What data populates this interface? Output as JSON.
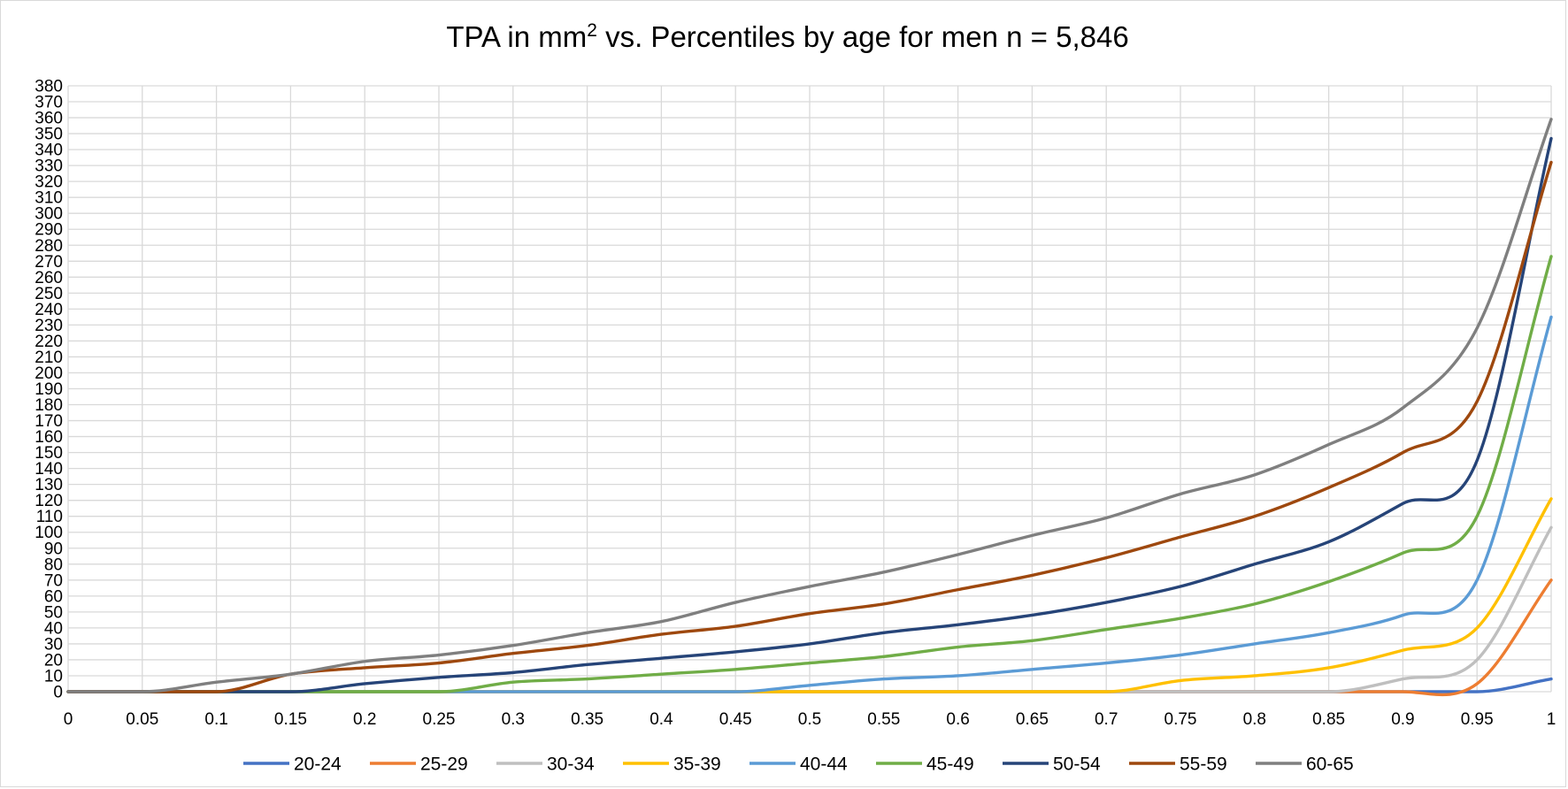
{
  "chart_data": {
    "type": "line",
    "title": "TPA in mm² vs. Percentiles by age for men n = 5,846",
    "title_parts": {
      "pre": "TPA in mm",
      "sup": "2",
      "post": " vs. Percentiles by age for men n = 5,846"
    },
    "xlabel": "",
    "ylabel": "",
    "xlim": [
      0,
      1
    ],
    "ylim": [
      0,
      380
    ],
    "x_ticks": [
      0,
      0.05,
      0.1,
      0.15,
      0.2,
      0.25,
      0.3,
      0.35,
      0.4,
      0.45,
      0.5,
      0.55,
      0.6,
      0.65,
      0.7,
      0.75,
      0.8,
      0.85,
      0.9,
      0.95,
      1
    ],
    "x_tick_labels": [
      "0",
      "0.05",
      "0.1",
      "0.15",
      "0.2",
      "0.25",
      "0.3",
      "0.35",
      "0.4",
      "0.45",
      "0.5",
      "0.55",
      "0.6",
      "0.65",
      "0.7",
      "0.75",
      "0.8",
      "0.85",
      "0.9",
      "0.95",
      "1"
    ],
    "y_ticks": [
      0,
      10,
      20,
      30,
      40,
      50,
      60,
      70,
      80,
      90,
      100,
      110,
      120,
      130,
      140,
      150,
      160,
      170,
      180,
      190,
      200,
      210,
      220,
      230,
      240,
      250,
      260,
      270,
      280,
      290,
      300,
      310,
      320,
      330,
      340,
      350,
      360,
      370,
      380
    ],
    "y_tick_labels": [
      "0",
      "10",
      "20",
      "30",
      "40",
      "50",
      "60",
      "70",
      "80",
      "90",
      "100",
      "110",
      "120",
      "130",
      "140",
      "150",
      "160",
      "170",
      "180",
      "190",
      "200",
      "210",
      "220",
      "230",
      "240",
      "250",
      "260",
      "270",
      "280",
      "290",
      "300",
      "310",
      "320",
      "330",
      "340",
      "350",
      "360",
      "370",
      "380"
    ],
    "grid": true,
    "legend_position": "bottom",
    "x": [
      0,
      0.05,
      0.1,
      0.15,
      0.2,
      0.25,
      0.3,
      0.35,
      0.4,
      0.45,
      0.5,
      0.55,
      0.6,
      0.65,
      0.7,
      0.75,
      0.8,
      0.85,
      0.9,
      0.95,
      1
    ],
    "series": [
      {
        "name": "20-24",
        "color": "#4472c4",
        "values": [
          0,
          0,
          0,
          0,
          0,
          0,
          0,
          0,
          0,
          0,
          0,
          0,
          0,
          0,
          0,
          0,
          0,
          0,
          0,
          0,
          8
        ]
      },
      {
        "name": "25-29",
        "color": "#ed7d31",
        "values": [
          0,
          0,
          0,
          0,
          0,
          0,
          0,
          0,
          0,
          0,
          0,
          0,
          0,
          0,
          0,
          0,
          0,
          0,
          0,
          5,
          70
        ]
      },
      {
        "name": "30-34",
        "color": "#bfbfbf",
        "values": [
          0,
          0,
          0,
          0,
          0,
          0,
          0,
          0,
          0,
          0,
          0,
          0,
          0,
          0,
          0,
          0,
          0,
          0,
          8,
          20,
          103
        ]
      },
      {
        "name": "35-39",
        "color": "#ffc000",
        "values": [
          0,
          0,
          0,
          0,
          0,
          0,
          0,
          0,
          0,
          0,
          0,
          0,
          0,
          0,
          0,
          7,
          10,
          15,
          26,
          40,
          121
        ]
      },
      {
        "name": "40-44",
        "color": "#5b9bd5",
        "values": [
          0,
          0,
          0,
          0,
          0,
          0,
          0,
          0,
          0,
          0,
          4,
          8,
          10,
          14,
          18,
          23,
          30,
          37,
          48,
          70,
          235
        ]
      },
      {
        "name": "45-49",
        "color": "#70ad47",
        "values": [
          0,
          0,
          0,
          0,
          0,
          0,
          6,
          8,
          11,
          14,
          18,
          22,
          28,
          32,
          39,
          46,
          55,
          69,
          87,
          110,
          273
        ]
      },
      {
        "name": "50-54",
        "color": "#264478",
        "values": [
          0,
          0,
          0,
          0,
          5,
          9,
          12,
          17,
          21,
          25,
          30,
          37,
          42,
          48,
          56,
          66,
          80,
          94,
          118,
          145,
          347
        ]
      },
      {
        "name": "55-59",
        "color": "#9e480e",
        "values": [
          0,
          0,
          0,
          11,
          15,
          18,
          24,
          29,
          36,
          41,
          49,
          55,
          64,
          73,
          84,
          97,
          110,
          128,
          150,
          182,
          332
        ]
      },
      {
        "name": "60-65",
        "color": "#7f7f7f",
        "values": [
          0,
          0,
          6,
          11,
          19,
          23,
          29,
          37,
          44,
          56,
          66,
          75,
          86,
          98,
          109,
          124,
          136,
          155,
          178,
          228,
          359
        ]
      }
    ]
  }
}
